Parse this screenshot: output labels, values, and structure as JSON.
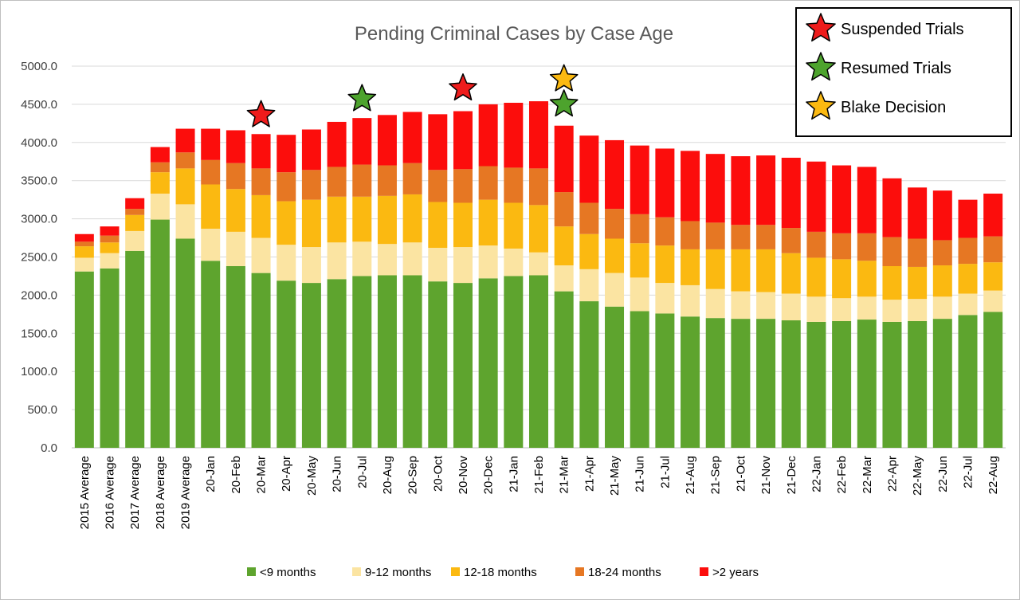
{
  "chart_data": {
    "type": "bar",
    "stacked": true,
    "title": "Pending Criminal Cases by  Case Age",
    "xlabel": "",
    "ylabel": "",
    "ylim": [
      0,
      5000
    ],
    "yticks": [
      "0.0",
      "500.0",
      "1000.0",
      "1500.0",
      "2000.0",
      "2500.0",
      "3000.0",
      "3500.0",
      "4000.0",
      "4500.0",
      "5000.0"
    ],
    "grid": true,
    "legend_position": "bottom",
    "categories": [
      "2015 Average",
      "2016 Average",
      "2017 Average",
      "2018 Average",
      "2019 Average",
      "20-Jan",
      "20-Feb",
      "20-Mar",
      "20-Apr",
      "20-May",
      "20-Jun",
      "20-Jul",
      "20-Aug",
      "20-Sep",
      "20-Oct",
      "20-Nov",
      "20-Dec",
      "21-Jan",
      "21-Feb",
      "21-Mar",
      "21-Apr",
      "21-May",
      "21-Jun",
      "21-Jul",
      "21-Aug",
      "21-Sep",
      "21-Oct",
      "21-Nov",
      "21-Dec",
      "22-Jan",
      "22-Feb",
      "22-Mar",
      "22-Apr",
      "22-May",
      "22-Jun",
      "22-Jul",
      "22-Aug"
    ],
    "series": [
      {
        "name": "<9 months",
        "color": "#5ea42e",
        "values": [
          2310,
          2350,
          2580,
          2990,
          2740,
          2450,
          2380,
          2290,
          2190,
          2160,
          2210,
          2250,
          2260,
          2260,
          2180,
          2160,
          2220,
          2250,
          2260,
          2050,
          1920,
          1850,
          1790,
          1760,
          1720,
          1700,
          1690,
          1690,
          1670,
          1650,
          1660,
          1680,
          1650,
          1660,
          1690,
          1740,
          1780
        ]
      },
      {
        "name": "9-12 months",
        "color": "#fbe4a2",
        "values": [
          180,
          200,
          260,
          340,
          450,
          420,
          450,
          460,
          470,
          470,
          480,
          450,
          410,
          430,
          440,
          470,
          430,
          360,
          300,
          340,
          420,
          440,
          440,
          400,
          410,
          380,
          360,
          350,
          350,
          330,
          300,
          300,
          290,
          290,
          290,
          280,
          280
        ]
      },
      {
        "name": "12-18 months",
        "color": "#fbb911",
        "values": [
          150,
          140,
          210,
          280,
          470,
          580,
          560,
          560,
          570,
          620,
          600,
          590,
          630,
          630,
          600,
          580,
          600,
          600,
          620,
          510,
          460,
          450,
          450,
          490,
          470,
          520,
          550,
          560,
          530,
          510,
          510,
          470,
          440,
          420,
          410,
          390,
          370
        ]
      },
      {
        "name": "18-24 months",
        "color": "#e67723",
        "values": [
          60,
          90,
          80,
          130,
          210,
          320,
          340,
          350,
          380,
          390,
          390,
          420,
          400,
          410,
          420,
          440,
          440,
          460,
          480,
          450,
          410,
          390,
          380,
          370,
          370,
          350,
          320,
          320,
          330,
          340,
          340,
          360,
          380,
          370,
          330,
          340,
          340
        ]
      },
      {
        "name": ">2 years",
        "color": "#fc0d0c",
        "values": [
          100,
          120,
          140,
          200,
          310,
          410,
          430,
          450,
          490,
          530,
          590,
          610,
          660,
          670,
          730,
          760,
          810,
          850,
          880,
          870,
          880,
          900,
          900,
          900,
          920,
          900,
          900,
          910,
          920,
          920,
          890,
          870,
          770,
          670,
          650,
          500,
          560
        ]
      }
    ],
    "markers": [
      {
        "label": "Suspended Trials",
        "color": "#ee1c1c",
        "icon": "red-star-icon",
        "category": "20-Mar",
        "y": 4360
      },
      {
        "label": "Resumed Trials",
        "color": "#4da32d",
        "icon": "green-star-icon",
        "category": "20-Jul",
        "y": 4570
      },
      {
        "label": "Suspended Trials",
        "color": "#ee1c1c",
        "icon": "red-star-icon",
        "category": "20-Nov",
        "y": 4710
      },
      {
        "label": "Blake Decision",
        "color": "#fbb911",
        "icon": "yellow-star-icon",
        "category": "21-Mar",
        "y": 4830
      },
      {
        "label": "Resumed Trials",
        "color": "#4da32d",
        "icon": "green-star-icon",
        "category": "21-Mar",
        "y": 4500
      }
    ],
    "marker_legend": [
      {
        "label": "Suspended Trials",
        "color": "#ee1c1c",
        "icon": "red-star-icon"
      },
      {
        "label": "Resumed Trials",
        "color": "#4da32d",
        "icon": "green-star-icon"
      },
      {
        "label": "Blake Decision",
        "color": "#fbb911",
        "icon": "yellow-star-icon"
      }
    ]
  }
}
